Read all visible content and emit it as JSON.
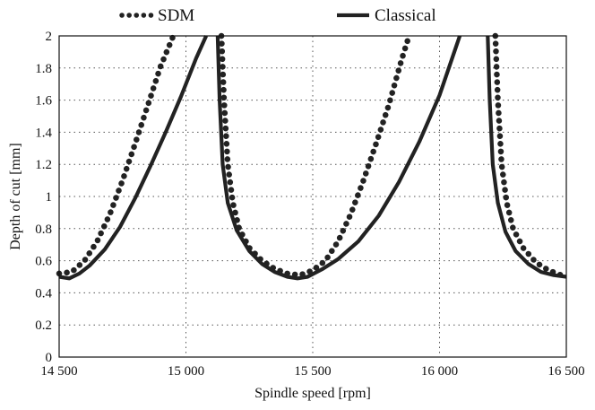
{
  "chart_data": {
    "type": "line",
    "xlabel": "Spindle speed [rpm]",
    "ylabel": "Depth of cut  [mm]",
    "xlim": [
      14500,
      16500
    ],
    "ylim": [
      0,
      2
    ],
    "x_ticks": [
      14500,
      15000,
      15500,
      16000,
      16500
    ],
    "x_tick_labels": [
      "14 500",
      "15 000",
      "15 500",
      "16 000",
      "16 500"
    ],
    "y_ticks": [
      0,
      0.2,
      0.4,
      0.6,
      0.8,
      1,
      1.2,
      1.4,
      1.6,
      1.8,
      2
    ],
    "y_tick_labels": [
      "0",
      "0.2",
      "0.4",
      "0.6",
      "0.8",
      "1",
      "1.2",
      "1.4",
      "1.6",
      "1.8",
      "2"
    ],
    "grid": true,
    "legend_position": "top",
    "series": [
      {
        "name": "SDM",
        "style": "dotted",
        "color": "#222222",
        "segments": [
          {
            "x": [
              14500,
              14550,
              14600,
              14650,
              14700,
              14750,
              14800,
              14850,
              14900,
              14950
            ],
            "y": [
              0.52,
              0.53,
              0.6,
              0.72,
              0.89,
              1.1,
              1.33,
              1.57,
              1.81,
              2.0
            ]
          },
          {
            "x": [
              15140,
              15150,
              15165,
              15185,
              15210,
              15250,
              15300,
              15350,
              15400,
              15450,
              15500,
              15550,
              15600,
              15650,
              15700,
              15750,
              15800,
              15850,
              15880
            ],
            "y": [
              2.0,
              1.6,
              1.2,
              0.96,
              0.8,
              0.68,
              0.6,
              0.55,
              0.52,
              0.51,
              0.54,
              0.6,
              0.72,
              0.89,
              1.1,
              1.33,
              1.57,
              1.85,
              2.0
            ]
          },
          {
            "x": [
              16220,
              16230,
              16245,
              16265,
              16290,
              16330,
              16380,
              16430,
              16480,
              16500
            ],
            "y": [
              2.0,
              1.6,
              1.2,
              0.96,
              0.8,
              0.68,
              0.59,
              0.54,
              0.51,
              0.5
            ]
          }
        ]
      },
      {
        "name": "Classical",
        "style": "solid",
        "color": "#222222",
        "segments": [
          {
            "x": [
              14500,
              14540,
              14580,
              14620,
              14680,
              14740,
              14800,
              14860,
              14920,
              14980,
              15040,
              15080
            ],
            "y": [
              0.5,
              0.49,
              0.52,
              0.57,
              0.67,
              0.81,
              0.99,
              1.19,
              1.4,
              1.62,
              1.86,
              2.0
            ]
          },
          {
            "x": [
              15125,
              15133,
              15145,
              15165,
              15200,
              15250,
              15300,
              15350,
              15400,
              15440,
              15480,
              15540,
              15600,
              15680,
              15760,
              15840,
              15920,
              16000,
              16080
            ],
            "y": [
              2.0,
              1.6,
              1.2,
              0.96,
              0.79,
              0.66,
              0.58,
              0.53,
              0.5,
              0.49,
              0.5,
              0.55,
              0.61,
              0.72,
              0.88,
              1.09,
              1.34,
              1.63,
              2.0
            ]
          },
          {
            "x": [
              16190,
              16198,
              16210,
              16230,
              16260,
              16300,
              16350,
              16400,
              16450,
              16500
            ],
            "y": [
              2.0,
              1.6,
              1.2,
              0.96,
              0.78,
              0.66,
              0.58,
              0.53,
              0.51,
              0.5
            ]
          }
        ]
      }
    ]
  }
}
